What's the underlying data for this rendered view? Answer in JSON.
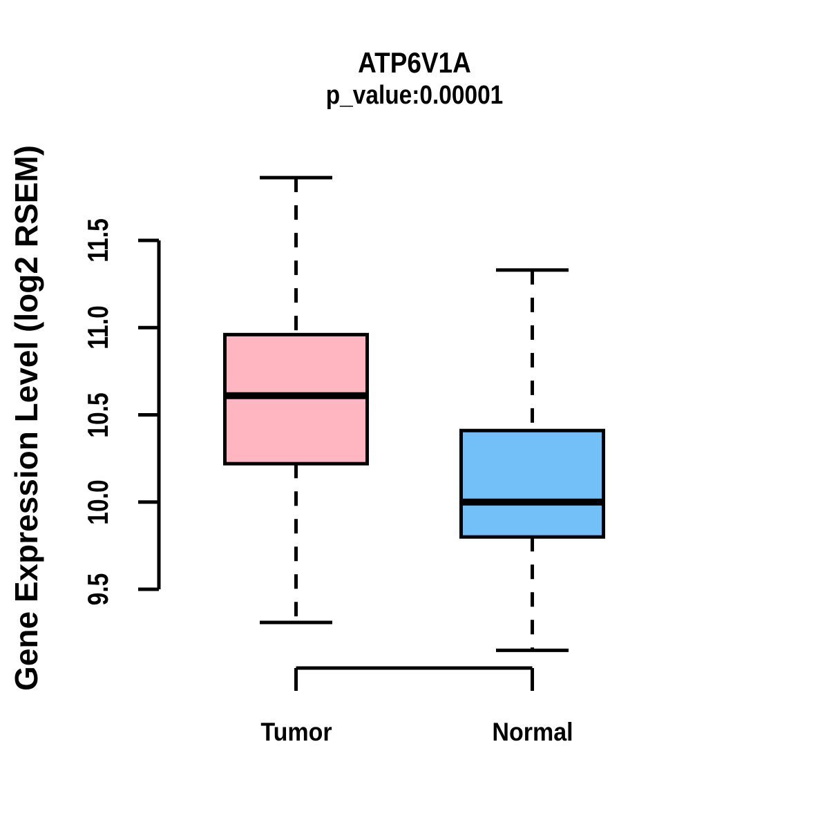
{
  "figure": {
    "title": "ATP6V1A",
    "subtitle": "p_value:0.00001",
    "y_axis_label": "Gene Expression Level (log2 RSEM)"
  },
  "chart_data": {
    "type": "boxplot",
    "title": "ATP6V1A",
    "subtitle": "p_value:0.00001",
    "ylabel": "Gene Expression Level (log2 RSEM)",
    "xlabel": "",
    "categories": [
      "Tumor",
      "Normal"
    ],
    "ylim": [
      9.5,
      11.5
    ],
    "yticks": [
      9.5,
      10.0,
      10.5,
      11.0,
      11.5
    ],
    "ytick_labels": [
      "9.5",
      "10.0",
      "10.5",
      "11.0",
      "11.5"
    ],
    "grid": false,
    "legend": "none",
    "whisker_style": "dashed",
    "series": [
      {
        "name": "Tumor",
        "min": 9.31,
        "q1": 10.22,
        "median": 10.61,
        "q3": 10.96,
        "max": 11.86,
        "fill_color": "#FFB6C1",
        "border_color": "#000000"
      },
      {
        "name": "Normal",
        "min": 9.15,
        "q1": 9.8,
        "median": 10.0,
        "q3": 10.41,
        "max": 11.33,
        "fill_color": "#73BFF7",
        "border_color": "#000000"
      }
    ]
  }
}
